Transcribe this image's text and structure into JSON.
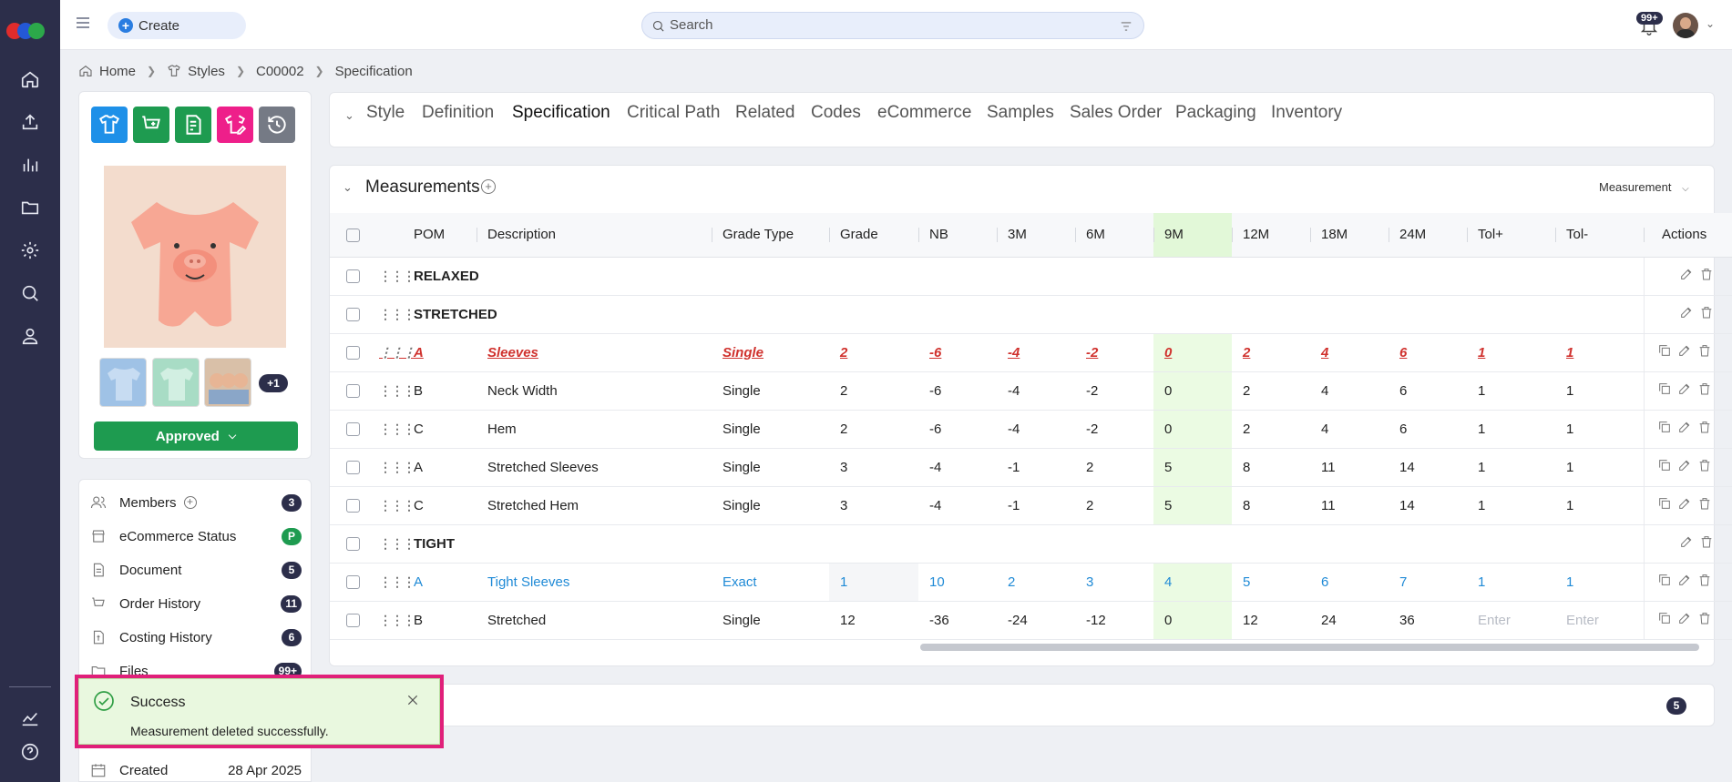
{
  "topbar": {
    "create_label": "Create",
    "search_placeholder": "Search",
    "notification_count": "99+"
  },
  "breadcrumb": [
    "Home",
    "Styles",
    "C00002",
    "Specification"
  ],
  "style_panel": {
    "action_tiles": [
      {
        "icon": "shirt-icon",
        "color": "#1e90e8"
      },
      {
        "icon": "cart-add-icon",
        "color": "#1e9b50"
      },
      {
        "icon": "costing-icon",
        "color": "#1e9b50"
      },
      {
        "icon": "shirt-edit-icon",
        "color": "#ee1f8a"
      },
      {
        "icon": "history-icon",
        "color": "#757a85"
      }
    ],
    "more_images": "+1",
    "status": "Approved"
  },
  "info_panel": {
    "items": [
      {
        "label": "Members",
        "count": "3",
        "icon": "members-icon"
      },
      {
        "label": "eCommerce Status",
        "count": "P",
        "icon": "store-icon"
      },
      {
        "label": "Document",
        "count": "5",
        "icon": "document-icon"
      },
      {
        "label": "Order History",
        "count": "11",
        "icon": "cart-icon"
      },
      {
        "label": "Costing History",
        "count": "6",
        "icon": "costing-icon"
      },
      {
        "label": "Files",
        "count": "99+",
        "icon": "folder-icon"
      }
    ],
    "created_label": "Created",
    "created_value": "28 Apr 2025"
  },
  "tabs": [
    "Style",
    "Definition",
    "Specification",
    "Critical Path",
    "Related",
    "Codes",
    "eCommerce",
    "Samples",
    "Sales Order",
    "Packaging",
    "Inventory"
  ],
  "active_tab": "Specification",
  "measurements": {
    "title": "Measurements",
    "view_dropdown": "Measurement",
    "columns": [
      "POM",
      "Description",
      "Grade Type",
      "Grade",
      "NB",
      "3M",
      "6M",
      "9M",
      "12M",
      "18M",
      "24M",
      "Tol+",
      "Tol-",
      "Actions"
    ],
    "rows": [
      {
        "type": "group",
        "label": "RELAXED"
      },
      {
        "type": "group",
        "label": "STRETCHED"
      },
      {
        "type": "row",
        "style": "red",
        "cells": [
          "A",
          "Sleeves",
          "Single",
          "2",
          "-6",
          "-4",
          "-2",
          "0",
          "2",
          "4",
          "6",
          "1",
          "1"
        ]
      },
      {
        "type": "row",
        "style": "",
        "cells": [
          "B",
          "Neck Width",
          "Single",
          "2",
          "-6",
          "-4",
          "-2",
          "0",
          "2",
          "4",
          "6",
          "1",
          "1"
        ]
      },
      {
        "type": "row",
        "style": "",
        "cells": [
          "C",
          "Hem",
          "Single",
          "2",
          "-6",
          "-4",
          "-2",
          "0",
          "2",
          "4",
          "6",
          "1",
          "1"
        ]
      },
      {
        "type": "row",
        "style": "",
        "cells": [
          "A",
          "Stretched Sleeves",
          "Single",
          "3",
          "-4",
          "-1",
          "2",
          "5",
          "8",
          "11",
          "14",
          "1",
          "1"
        ]
      },
      {
        "type": "row",
        "style": "",
        "cells": [
          "C",
          "Stretched Hem",
          "Single",
          "3",
          "-4",
          "-1",
          "2",
          "5",
          "8",
          "11",
          "14",
          "1",
          "1"
        ]
      },
      {
        "type": "group",
        "label": "TIGHT"
      },
      {
        "type": "row",
        "style": "blue",
        "cells": [
          "A",
          "Tight Sleeves",
          "Exact",
          "1",
          "10",
          "2",
          "3",
          "4",
          "5",
          "6",
          "7",
          "1",
          "1"
        ]
      },
      {
        "type": "row",
        "style": "",
        "cells": [
          "B",
          "Stretched",
          "Single",
          "12",
          "-36",
          "-24",
          "-12",
          "0",
          "12",
          "24",
          "36",
          "Enter",
          "Enter"
        ]
      }
    ]
  },
  "bottom_card": {
    "count": "5"
  },
  "toast": {
    "title": "Success",
    "message": "Measurement deleted successfully."
  },
  "colors": {
    "rail": "#2c2e4a",
    "accent_blue": "#2a7de1",
    "success_green": "#1e9b50",
    "highlight_column": "#ebfbe3",
    "toast_border": "#e0207a",
    "error_red": "#d0322e",
    "link_blue": "#1f8ad6"
  }
}
